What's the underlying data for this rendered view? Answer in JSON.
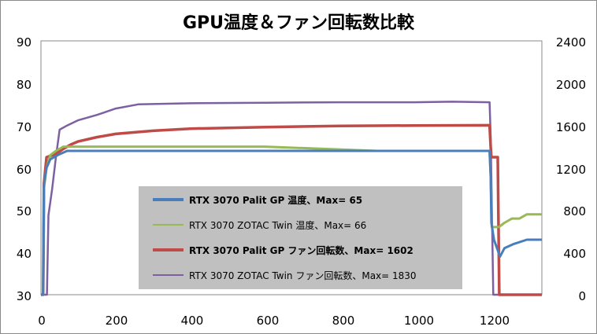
{
  "chart_data": {
    "type": "line",
    "title": "GPU温度＆ファン回転数比較",
    "xlim": [
      0,
      1340
    ],
    "ylim_left": [
      30,
      90
    ],
    "ylim_right": [
      0,
      2400
    ],
    "x_ticks": [
      "0",
      "200",
      "400",
      "600",
      "800",
      "1000",
      "1200"
    ],
    "y_left_ticks": [
      "30",
      "40",
      "50",
      "60",
      "70",
      "80",
      "90"
    ],
    "y_right_ticks": [
      "0",
      "400",
      "800",
      "1200",
      "1600",
      "2000",
      "2400"
    ],
    "grid": false,
    "legend_position": "center-left",
    "series": [
      {
        "name": "RTX 3070 Palit GP 温度、Max= 65",
        "axis": "left",
        "color": "#4a7ebb",
        "bold_label": true,
        "points": [
          [
            0,
            30
          ],
          [
            6,
            30
          ],
          [
            8,
            56
          ],
          [
            15,
            60
          ],
          [
            25,
            62
          ],
          [
            45,
            63
          ],
          [
            70,
            64
          ],
          [
            120,
            64
          ],
          [
            300,
            64
          ],
          [
            600,
            64
          ],
          [
            900,
            64
          ],
          [
            1150,
            64
          ],
          [
            1200,
            64
          ],
          [
            1203,
            58
          ],
          [
            1205,
            47
          ],
          [
            1212,
            43
          ],
          [
            1220,
            41
          ],
          [
            1228,
            39
          ],
          [
            1240,
            41
          ],
          [
            1265,
            42
          ],
          [
            1300,
            43
          ],
          [
            1340,
            43
          ]
        ]
      },
      {
        "name": "RTX 3070 ZOTAC Twin 温度、Max= 66",
        "axis": "left",
        "color": "#98b954",
        "bold_label": false,
        "points": [
          [
            0,
            30
          ],
          [
            6,
            30
          ],
          [
            8,
            55
          ],
          [
            15,
            60
          ],
          [
            25,
            63
          ],
          [
            40,
            64
          ],
          [
            60,
            65
          ],
          [
            100,
            65
          ],
          [
            300,
            65
          ],
          [
            600,
            65
          ],
          [
            900,
            64
          ],
          [
            1150,
            64
          ],
          [
            1200,
            64
          ],
          [
            1203,
            58
          ],
          [
            1206,
            46
          ],
          [
            1225,
            46
          ],
          [
            1240,
            47
          ],
          [
            1260,
            48
          ],
          [
            1280,
            48
          ],
          [
            1300,
            49
          ],
          [
            1340,
            49
          ]
        ]
      },
      {
        "name": "RTX 3070 Palit GP ファン回転数、Max= 1602",
        "axis": "right",
        "color": "#be4b48",
        "bold_label": true,
        "points": [
          [
            0,
            0
          ],
          [
            6,
            0
          ],
          [
            8,
            1050
          ],
          [
            15,
            1300
          ],
          [
            40,
            1330
          ],
          [
            60,
            1380
          ],
          [
            80,
            1420
          ],
          [
            100,
            1450
          ],
          [
            150,
            1490
          ],
          [
            200,
            1520
          ],
          [
            300,
            1550
          ],
          [
            400,
            1570
          ],
          [
            600,
            1585
          ],
          [
            800,
            1595
          ],
          [
            1000,
            1600
          ],
          [
            1200,
            1602
          ],
          [
            1203,
            1400
          ],
          [
            1205,
            1300
          ],
          [
            1222,
            1300
          ],
          [
            1226,
            0
          ],
          [
            1340,
            0
          ]
        ]
      },
      {
        "name": "RTX 3070 ZOTAC Twin ファン回転数、Max= 1830",
        "axis": "right",
        "color": "#7d60a0",
        "bold_label": false,
        "points": [
          [
            0,
            0
          ],
          [
            16,
            0
          ],
          [
            20,
            750
          ],
          [
            30,
            1000
          ],
          [
            40,
            1300
          ],
          [
            50,
            1560
          ],
          [
            70,
            1600
          ],
          [
            100,
            1650
          ],
          [
            150,
            1700
          ],
          [
            200,
            1760
          ],
          [
            260,
            1800
          ],
          [
            400,
            1810
          ],
          [
            600,
            1815
          ],
          [
            800,
            1820
          ],
          [
            1000,
            1820
          ],
          [
            1100,
            1825
          ],
          [
            1200,
            1820
          ],
          [
            1203,
            1500
          ],
          [
            1210,
            0
          ],
          [
            1340,
            0
          ]
        ]
      }
    ]
  },
  "colors": {
    "legend_background": "#c0c0c0",
    "axis": "#8a8a8a"
  }
}
